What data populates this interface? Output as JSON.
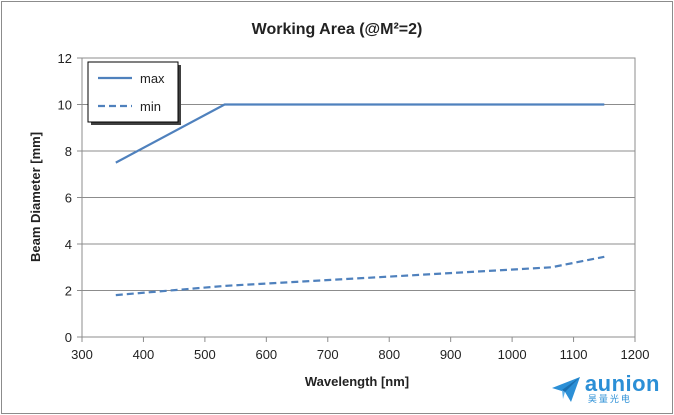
{
  "chart_data": {
    "type": "line",
    "title": "Working Area (@M²=2)",
    "xlabel": "Wavelength [nm]",
    "ylabel": "Beam Diameter [mm]",
    "xlim": [
      300,
      1200
    ],
    "ylim": [
      0,
      12
    ],
    "xticks": [
      300,
      400,
      500,
      600,
      700,
      800,
      900,
      1000,
      1100,
      1200
    ],
    "yticks": [
      0,
      2,
      4,
      6,
      8,
      10,
      12
    ],
    "grid": "horizontal",
    "legend": "top-left",
    "series": [
      {
        "name": "max",
        "style": "solid",
        "color": "#4f81bd",
        "points": [
          [
            355,
            7.5
          ],
          [
            532,
            10
          ],
          [
            1150,
            10
          ]
        ]
      },
      {
        "name": "min",
        "style": "dashed",
        "color": "#4f81bd",
        "points": [
          [
            355,
            1.8
          ],
          [
            532,
            2.2
          ],
          [
            800,
            2.6
          ],
          [
            1064,
            3.0
          ],
          [
            1150,
            3.45
          ]
        ]
      }
    ]
  },
  "logo": {
    "name": "aunion",
    "subtitle": "昊量光电",
    "color": "#2b8fd6"
  }
}
